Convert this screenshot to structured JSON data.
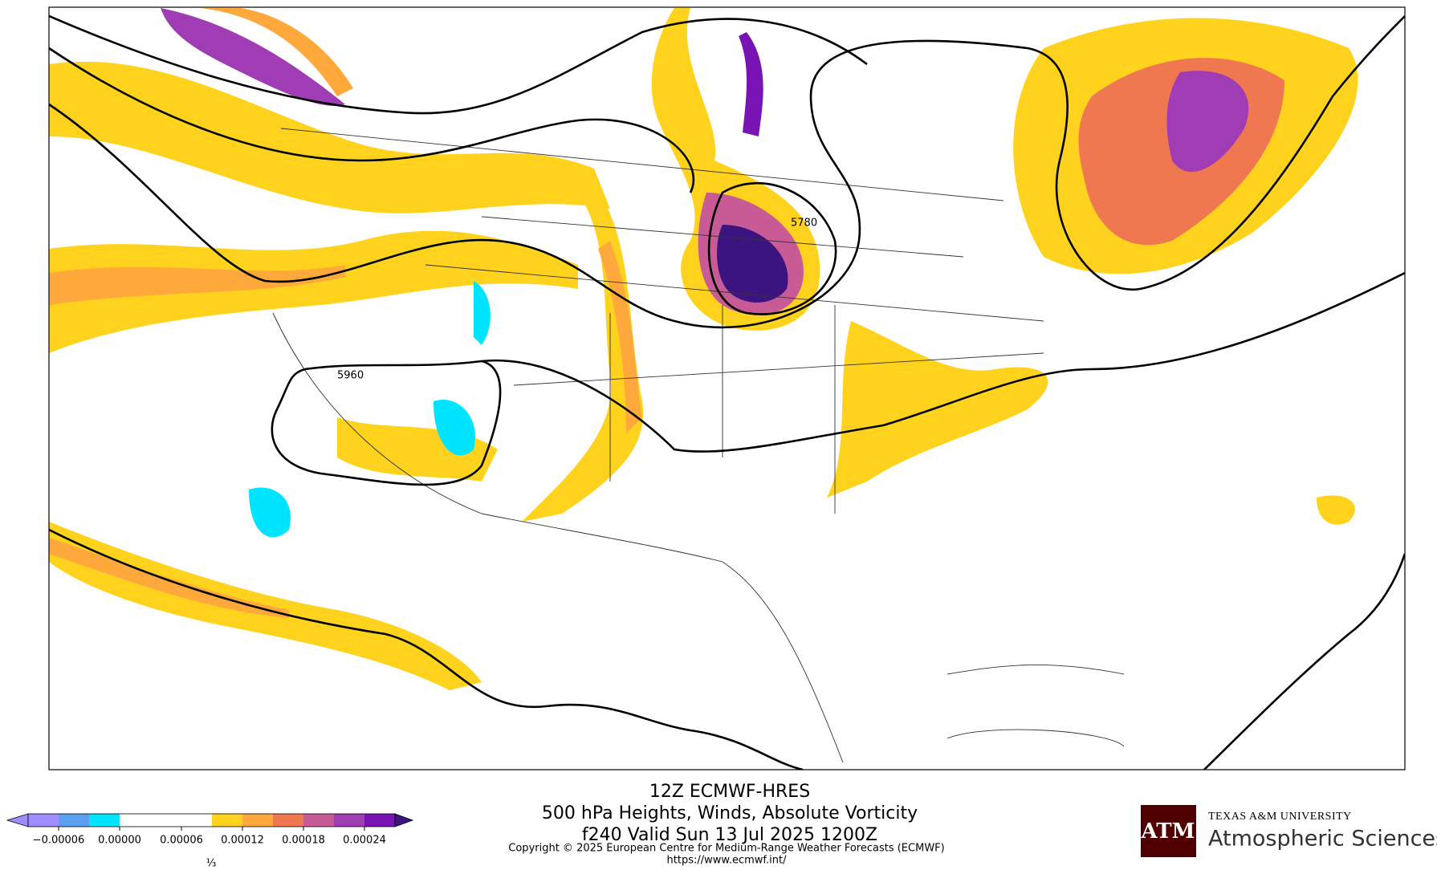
{
  "title": {
    "line1": "12Z ECMWF-HRES",
    "line2": "500 hPa Heights, Winds, Absolute Vorticity",
    "line3": "f240 Valid Sun 13 Jul 2025 1200Z"
  },
  "copyright": "Copyright © 2025 European Centre for Medium-Range Weather Forecasts (ECMWF)",
  "url": "https://www.ecmwf.int/",
  "map": {
    "contour_labels": [
      "5780",
      "5960"
    ]
  },
  "colorbar": {
    "ticks": [
      "−0.00006",
      "0.00000",
      "0.00006",
      "0.00012",
      "0.00018",
      "0.00024"
    ],
    "scale_note": "⅓"
  },
  "logo": {
    "mark": "ATM",
    "university": "TEXAS A&M UNIVERSITY",
    "department": "Atmospheric Sciences"
  }
}
